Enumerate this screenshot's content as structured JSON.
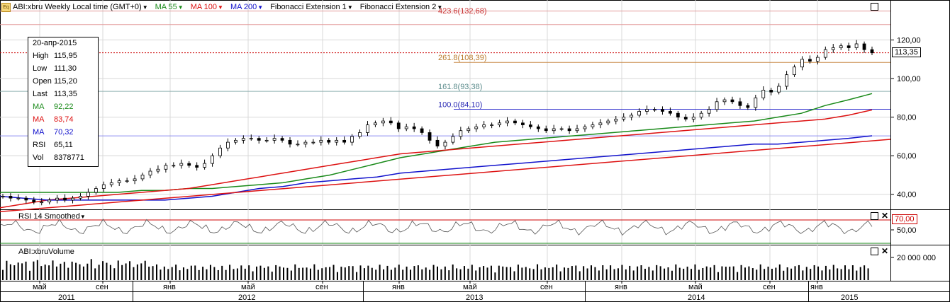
{
  "toolbar": {
    "symbol": "ABI:xbru",
    "period": "Weekly",
    "timezone": "Local time (GMT+0)",
    "ma55_label": "MA 55",
    "ma100_label": "MA 100",
    "ma200_label": "MA 200",
    "fib1_label": "Fibonacci Extension 1",
    "fib2_label": "Fibonacci Extension 2",
    "icon": "eq-icon"
  },
  "infobox": {
    "date": "20-апр-2015",
    "rows": [
      {
        "k": "High",
        "v": "115,95",
        "color": "#000000"
      },
      {
        "k": "Low",
        "v": "111,30",
        "color": "#000000"
      },
      {
        "k": "Open",
        "v": "115,20",
        "color": "#000000"
      },
      {
        "k": "Last",
        "v": "113,35",
        "color": "#000000"
      },
      {
        "k": "MA",
        "v": "92,22",
        "color": "#1a8a1a"
      },
      {
        "k": "MA",
        "v": "83,74",
        "color": "#dd1111"
      },
      {
        "k": "MA",
        "v": "70,32",
        "color": "#1111cc"
      },
      {
        "k": "RSI",
        "v": "65,11",
        "color": "#000000"
      },
      {
        "k": "Vol",
        "v": "8378771",
        "color": "#000000"
      }
    ]
  },
  "fib_labels": [
    {
      "text": "423.6(132,68)",
      "value": 132.68,
      "color": "#c83232"
    },
    {
      "text": "261.8(108,39)",
      "value": 108.39,
      "color": "#b8782a"
    },
    {
      "text": "161.8(93,38)",
      "value": 93.38,
      "color": "#5c8c8c"
    },
    {
      "text": "100.0(84,10)",
      "value": 84.1,
      "color": "#2a2ab4"
    }
  ],
  "price_badge": "113,35",
  "rsi_pane": {
    "label": "RSI 14 Smoothed",
    "badge": "70,00",
    "ticks": [
      "50,00"
    ]
  },
  "volume_pane": {
    "label": "ABI:xbruVolume",
    "ticks": [
      "20 000 000"
    ]
  },
  "x_axis": {
    "months": [
      "май",
      "сен",
      "янв",
      "май",
      "сен",
      "янв",
      "май",
      "сен",
      "янв",
      "май",
      "сен",
      "янв"
    ],
    "years": [
      "2011",
      "2012",
      "2013",
      "2014",
      "2015"
    ]
  },
  "colors": {
    "ma55": "#1a8a1a",
    "ma100": "#dd1111",
    "ma200": "#1111cc",
    "grid": "#d8d8d8"
  },
  "chart_data": {
    "type": "line",
    "title": "ABI:xbru Weekly",
    "ylim": [
      30,
      140
    ],
    "y_ticks": [
      "40,00",
      "60,00",
      "80,00",
      "100,00",
      "120,00"
    ],
    "y_tick_values": [
      40,
      60,
      80,
      100,
      120
    ],
    "close_series": {
      "name": "ABI:xbru",
      "values": [
        39,
        38,
        38,
        37,
        36,
        36,
        37,
        38,
        37,
        38,
        39,
        41,
        43,
        45,
        46,
        47,
        47,
        48,
        50,
        52,
        53,
        55,
        55,
        56,
        55,
        54,
        56,
        60,
        64,
        67,
        68,
        69,
        69,
        68,
        68,
        69,
        68,
        66,
        66,
        67,
        67,
        68,
        67,
        68,
        67,
        70,
        72,
        76,
        77,
        78,
        77,
        74,
        75,
        74,
        72,
        68,
        65,
        67,
        70,
        73,
        74,
        75,
        76,
        76,
        77,
        78,
        77,
        76,
        75,
        74,
        73,
        74,
        74,
        73,
        74,
        75,
        76,
        77,
        78,
        79,
        80,
        81,
        83,
        84,
        84,
        83,
        82,
        80,
        79,
        80,
        82,
        84,
        88,
        89,
        88,
        86,
        85,
        90,
        94,
        93,
        96,
        102,
        106,
        110,
        109,
        111,
        115,
        116,
        117,
        116,
        118,
        115,
        113.35
      ]
    },
    "ma_series": [
      {
        "name": "MA 55",
        "color": "#1a8a1a",
        "values": [
          41,
          41,
          41,
          41,
          41,
          41,
          42,
          42,
          43,
          43,
          44,
          45,
          46,
          48,
          50,
          53,
          56,
          59,
          61,
          63,
          65,
          67,
          68,
          69,
          70,
          71,
          72,
          73,
          74,
          75,
          76,
          77,
          78,
          80,
          82,
          86,
          89,
          92.22
        ]
      },
      {
        "name": "MA 100",
        "color": "#dd1111",
        "values": [
          33,
          35,
          37,
          38,
          39,
          40,
          41,
          42,
          43,
          45,
          47,
          49,
          51,
          53,
          55,
          57,
          59,
          61,
          62,
          63,
          64,
          65,
          66,
          67,
          68,
          69,
          70,
          71,
          72,
          73,
          74,
          75,
          76,
          77,
          78,
          79,
          81,
          83.74
        ]
      },
      {
        "name": "MA 200",
        "color": "#1111cc",
        "values": [
          39,
          38,
          37,
          37,
          37,
          37,
          37,
          37,
          38,
          39,
          41,
          43,
          44,
          46,
          47,
          48,
          49,
          51,
          52,
          53,
          54,
          55,
          56,
          57,
          58,
          59,
          60,
          61,
          62,
          63,
          64,
          65,
          66,
          66,
          67,
          68,
          69,
          70.32
        ]
      }
    ],
    "rsi_series": {
      "name": "RSI 14 Smoothed",
      "overbought": 70,
      "last": 65.11
    },
    "volume_series": {
      "name": "ABI:xbruVolume",
      "last": 8378771
    }
  }
}
